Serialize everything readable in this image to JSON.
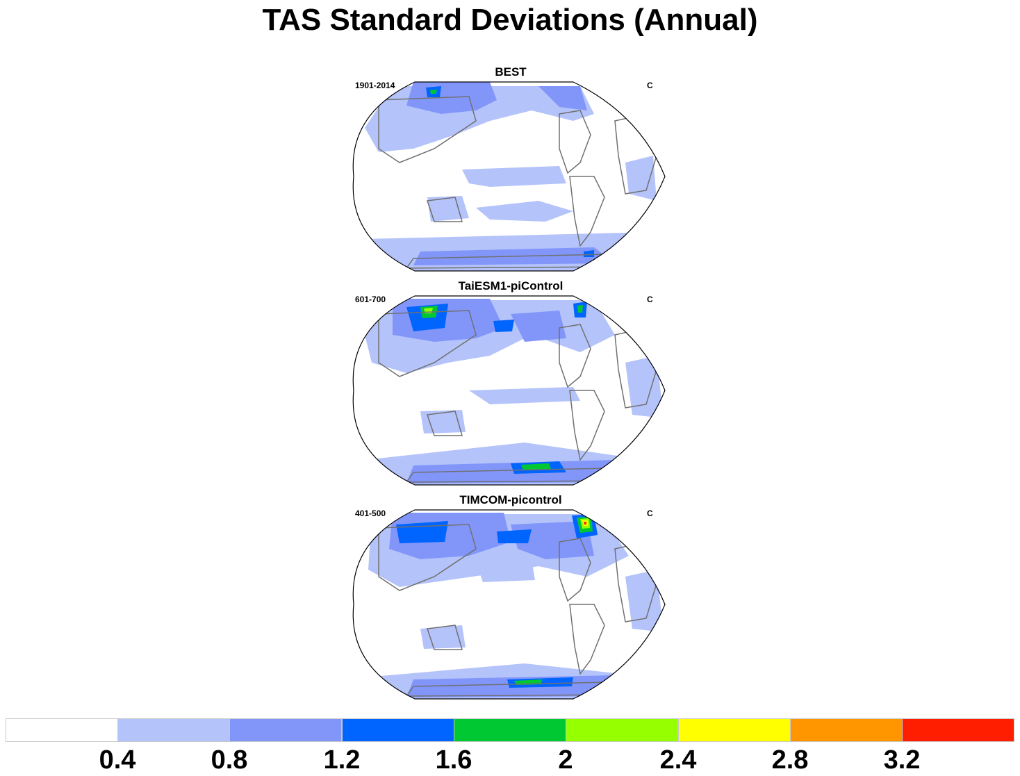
{
  "title": "TAS Standard Deviations (Annual)",
  "panels": [
    {
      "name": "BEST",
      "period": "1901-2014",
      "units": "C"
    },
    {
      "name": "TaiESM1-piControl",
      "period": "601-700",
      "units": "C"
    },
    {
      "name": "TIMCOM-picontrol",
      "period": "401-500",
      "units": "C"
    }
  ],
  "colorbar": {
    "labels": [
      "0.4",
      "0.8",
      "1.2",
      "1.6",
      "2",
      "2.4",
      "2.8",
      "3.2"
    ],
    "colors": [
      "#ffffff",
      "#b4c3fa",
      "#8296fa",
      "#0064ff",
      "#00c832",
      "#96ff00",
      "#ffff00",
      "#ff9600",
      "#ff1e00"
    ]
  },
  "colors": {
    "land_outline": "#707070",
    "map_border": "#000000"
  }
}
